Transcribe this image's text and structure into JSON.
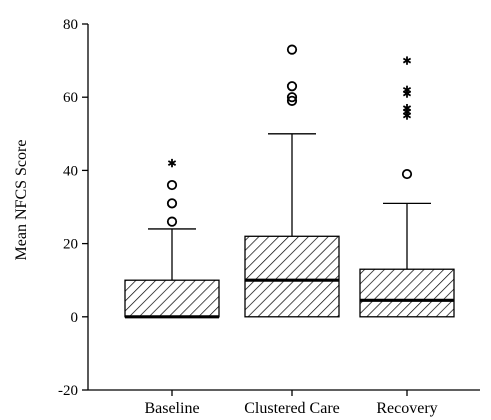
{
  "chart_data": {
    "type": "boxplot",
    "title": "",
    "xlabel": "",
    "ylabel": "Mean NFCS Score",
    "ylim": [
      -20,
      80
    ],
    "yticks": [
      -20,
      0,
      20,
      40,
      60,
      80
    ],
    "grid": false,
    "categories": [
      "Baseline",
      "Clustered Care",
      "Recovery"
    ],
    "boxes": [
      {
        "category": "Baseline",
        "q1": 0,
        "median": 0,
        "q3": 10,
        "whisker_low": 0,
        "whisker_high": 24,
        "outliers": [
          26,
          31,
          36
        ],
        "extremes": [
          42
        ]
      },
      {
        "category": "Clustered Care",
        "q1": 0,
        "median": 10,
        "q3": 22,
        "whisker_low": 0,
        "whisker_high": 50,
        "outliers": [
          59,
          60,
          63,
          73
        ],
        "extremes": []
      },
      {
        "category": "Recovery",
        "q1": 0,
        "median": 4.5,
        "q3": 13,
        "whisker_low": 0,
        "whisker_high": 31,
        "outliers": [
          39
        ],
        "extremes": [
          55,
          56,
          57,
          61,
          62,
          70
        ]
      }
    ],
    "fill_pattern": "diagonal-hatch",
    "colors": {
      "stroke": "#000000",
      "fill": "#ffffff"
    }
  }
}
